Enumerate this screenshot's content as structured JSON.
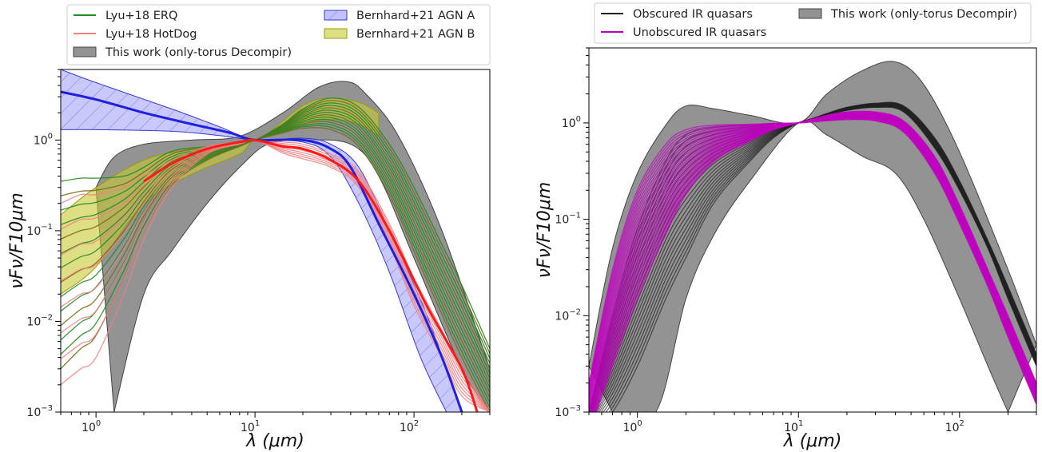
{
  "chart_data": [
    {
      "type": "line",
      "panel": "left",
      "xscale": "log",
      "yscale": "log",
      "xlim": [
        0.6,
        300
      ],
      "ylim": [
        0.001,
        6
      ],
      "xlabel": "λ (μm)",
      "ylabel": "νFν/F10μm",
      "grid": false,
      "legend_position": "top, above plot",
      "xticks": [
        {
          "value": 1,
          "label": "10",
          "exp": "0"
        },
        {
          "value": 10,
          "label": "10",
          "exp": "1"
        },
        {
          "value": 100,
          "label": "10",
          "exp": "2"
        }
      ],
      "yticks": [
        {
          "value": 0.001,
          "label": "10",
          "exp": "−3"
        },
        {
          "value": 0.01,
          "label": "10",
          "exp": "−2"
        },
        {
          "value": 0.1,
          "label": "10",
          "exp": "−1"
        },
        {
          "value": 1,
          "label": "10",
          "exp": "0"
        }
      ],
      "legend": [
        {
          "label": "Lyu+18 ERQ",
          "kind": "line",
          "color": "#228b22"
        },
        {
          "label": "Lyu+18 HotDog",
          "kind": "line",
          "color": "#f08080"
        },
        {
          "label": "This work (only-torus Decompir)",
          "kind": "band",
          "color": "#808080"
        },
        {
          "label": "Bernhard+21 AGN A",
          "kind": "hatch",
          "color": "#6b6bf0"
        },
        {
          "label": "Bernhard+21 AGN B",
          "kind": "band",
          "color": "#c8c832"
        }
      ],
      "bands": [
        {
          "name": "This work (only-torus Decompir)",
          "color": "#808080",
          "upper": [
            [
              1.0,
              0.3
            ],
            [
              1.3,
              0.65
            ],
            [
              2,
              0.9
            ],
            [
              4,
              1.0
            ],
            [
              8,
              1.1
            ],
            [
              15,
              2.0
            ],
            [
              25,
              3.8
            ],
            [
              38,
              4.4
            ],
            [
              50,
              3.2
            ],
            [
              80,
              1.1
            ],
            [
              150,
              0.1
            ],
            [
              300,
              0.003
            ]
          ],
          "lower": [
            [
              1.3,
              0.001
            ],
            [
              2,
              0.02
            ],
            [
              3,
              0.06
            ],
            [
              5,
              0.2
            ],
            [
              8,
              0.5
            ],
            [
              12,
              0.9
            ],
            [
              20,
              1.0
            ],
            [
              40,
              0.9
            ],
            [
              60,
              0.4
            ],
            [
              100,
              0.05
            ],
            [
              200,
              0.003
            ],
            [
              300,
              0.001
            ]
          ]
        },
        {
          "name": "Bernhard+21 AGN B",
          "color": "#c8c832",
          "upper": [
            [
              0.6,
              0.15
            ],
            [
              1,
              0.3
            ],
            [
              2,
              0.6
            ],
            [
              4,
              0.8
            ],
            [
              10,
              1.0
            ],
            [
              20,
              2.4
            ],
            [
              30,
              2.9
            ],
            [
              45,
              2.6
            ],
            [
              60,
              2.0
            ]
          ],
          "lower": [
            [
              0.6,
              0.02
            ],
            [
              1,
              0.04
            ],
            [
              2,
              0.2
            ],
            [
              4,
              0.42
            ],
            [
              8,
              0.7
            ],
            [
              10,
              1.0
            ],
            [
              20,
              1.5
            ],
            [
              30,
              1.7
            ],
            [
              45,
              1.5
            ],
            [
              60,
              1.1
            ]
          ]
        },
        {
          "name": "Bernhard+21 AGN A",
          "color": "#6b6bf0",
          "upper": [
            [
              0.6,
              6
            ],
            [
              1,
              4.3
            ],
            [
              3,
              2.2
            ],
            [
              6,
              1.4
            ],
            [
              10,
              1.0
            ],
            [
              20,
              1.05
            ],
            [
              30,
              0.9
            ],
            [
              45,
              0.5
            ],
            [
              70,
              0.1
            ],
            [
              120,
              0.012
            ],
            [
              200,
              0.001
            ]
          ],
          "lower": [
            [
              0.6,
              1.3
            ],
            [
              1,
              1.3
            ],
            [
              3,
              1.25
            ],
            [
              6,
              1.12
            ],
            [
              10,
              1.0
            ],
            [
              20,
              0.95
            ],
            [
              30,
              0.65
            ],
            [
              45,
              0.2
            ],
            [
              70,
              0.035
            ],
            [
              110,
              0.004
            ],
            [
              160,
              0.001
            ]
          ]
        }
      ],
      "series": [
        {
          "name": "Bernhard+21 AGN A",
          "color": "#1f1fe0",
          "points": [
            [
              0.6,
              3.4
            ],
            [
              1,
              2.8
            ],
            [
              2,
              2.0
            ],
            [
              4,
              1.5
            ],
            [
              7,
              1.2
            ],
            [
              10,
              1.0
            ],
            [
              20,
              1.0
            ],
            [
              30,
              0.8
            ],
            [
              40,
              0.5
            ],
            [
              60,
              0.12
            ],
            [
              100,
              0.02
            ],
            [
              150,
              0.004
            ],
            [
              200,
              0.001
            ]
          ]
        },
        {
          "name": "Lyu+18 HotDog (mean)",
          "color": "#ff1a1a",
          "points": [
            [
              2,
              0.35
            ],
            [
              3,
              0.55
            ],
            [
              5,
              0.8
            ],
            [
              8,
              0.95
            ],
            [
              10,
              1.0
            ],
            [
              15,
              0.85
            ],
            [
              20,
              0.8
            ],
            [
              30,
              0.6
            ],
            [
              45,
              0.35
            ],
            [
              70,
              0.1
            ],
            [
              120,
              0.015
            ],
            [
              200,
              0.003
            ],
            [
              250,
              0.001
            ]
          ]
        }
      ],
      "families": [
        {
          "name": "Lyu+18 ERQ",
          "color": "#228b22",
          "count": 14,
          "x": [
            0.6,
            0.8,
            1,
            1.5,
            2,
            3,
            5,
            8,
            10,
            15,
            20,
            30,
            45,
            70,
            100,
            150,
            200,
            300
          ],
          "first": [
            0.35,
            0.38,
            0.38,
            0.4,
            0.5,
            0.75,
            0.85,
            0.95,
            1.0,
            1.5,
            2.2,
            2.9,
            2.3,
            0.9,
            0.3,
            0.07,
            0.025,
            0.005
          ],
          "last": [
            0.003,
            0.005,
            0.007,
            0.03,
            0.1,
            0.32,
            0.6,
            0.85,
            1.0,
            1.2,
            1.35,
            1.3,
            0.85,
            0.25,
            0.06,
            0.012,
            0.004,
            0.001
          ]
        },
        {
          "name": "Lyu+18 HotDog",
          "color": "#f08080",
          "count": 8,
          "x": [
            0.6,
            0.8,
            1,
            1.5,
            2,
            3,
            5,
            8,
            10,
            15,
            20,
            30,
            45,
            70,
            100,
            150,
            200,
            300
          ],
          "first": [
            0.2,
            0.25,
            0.25,
            0.3,
            0.4,
            0.6,
            0.85,
            0.95,
            1.0,
            0.95,
            0.9,
            0.7,
            0.45,
            0.12,
            0.03,
            0.008,
            0.003,
            0.001
          ],
          "last": [
            0.002,
            0.003,
            0.004,
            0.02,
            0.08,
            0.3,
            0.7,
            0.9,
            1.0,
            0.72,
            0.62,
            0.5,
            0.3,
            0.07,
            0.015,
            0.004,
            0.0015,
            0.001
          ]
        }
      ]
    },
    {
      "type": "line",
      "panel": "right",
      "xscale": "log",
      "yscale": "log",
      "xlim": [
        0.5,
        300
      ],
      "ylim": [
        0.001,
        6
      ],
      "xlabel": "λ (μm)",
      "ylabel": "νFν/F10μm",
      "grid": false,
      "legend_position": "top, above plot",
      "xticks": [
        {
          "value": 1,
          "label": "10",
          "exp": "0"
        },
        {
          "value": 10,
          "label": "10",
          "exp": "1"
        },
        {
          "value": 100,
          "label": "10",
          "exp": "2"
        }
      ],
      "yticks": [
        {
          "value": 0.001,
          "label": "10",
          "exp": "−3"
        },
        {
          "value": 0.01,
          "label": "10",
          "exp": "−2"
        },
        {
          "value": 0.1,
          "label": "10",
          "exp": "−1"
        },
        {
          "value": 1,
          "label": "10",
          "exp": "0"
        }
      ],
      "legend": [
        {
          "label": "Obscured IR quasars",
          "kind": "line",
          "color": "#222222"
        },
        {
          "label": "Unobscured IR quasars",
          "kind": "line",
          "color": "#c000c0"
        },
        {
          "label": "This work (only-torus Decompir)",
          "kind": "band",
          "color": "#808080"
        }
      ],
      "bands": [
        {
          "name": "This work (only-torus Decompir)",
          "color": "#808080",
          "upper": [
            [
              0.5,
              0.003
            ],
            [
              0.7,
              0.05
            ],
            [
              1,
              0.3
            ],
            [
              1.5,
              0.95
            ],
            [
              2,
              1.5
            ],
            [
              3,
              1.4
            ],
            [
              5,
              1.2
            ],
            [
              10,
              1.0
            ],
            [
              15,
              2.0
            ],
            [
              25,
              3.5
            ],
            [
              40,
              4.3
            ],
            [
              60,
              2.5
            ],
            [
              100,
              0.5
            ],
            [
              200,
              0.03
            ],
            [
              300,
              0.005
            ]
          ],
          "lower": [
            [
              0.7,
              0.001
            ],
            [
              1.3,
              0.001
            ],
            [
              2,
              0.015
            ],
            [
              3,
              0.07
            ],
            [
              5,
              0.25
            ],
            [
              10,
              1.0
            ],
            [
              15,
              0.75
            ],
            [
              25,
              0.45
            ],
            [
              40,
              0.3
            ],
            [
              60,
              0.1
            ],
            [
              100,
              0.015
            ],
            [
              150,
              0.003
            ],
            [
              200,
              0.001
            ]
          ]
        }
      ],
      "families": [
        {
          "name": "Obscured IR quasars",
          "color": "#222222",
          "count": 22,
          "x": [
            0.5,
            0.7,
            1,
            1.5,
            2,
            3,
            5,
            7,
            10,
            15,
            20,
            30,
            45,
            70,
            100,
            150,
            200,
            300
          ],
          "first": [
            0.001,
            0.01,
            0.08,
            0.4,
            0.75,
            0.9,
            0.95,
            0.98,
            1.0,
            1.25,
            1.45,
            1.6,
            1.5,
            0.7,
            0.25,
            0.06,
            0.02,
            0.004
          ],
          "last": [
            0.0006,
            0.001,
            0.003,
            0.015,
            0.04,
            0.15,
            0.4,
            0.7,
            1.0,
            1.2,
            1.35,
            1.45,
            1.3,
            0.55,
            0.2,
            0.05,
            0.015,
            0.003
          ]
        },
        {
          "name": "Unobscured IR quasars",
          "color": "#c000c0",
          "count": 30,
          "x": [
            0.5,
            0.7,
            1,
            1.5,
            2,
            3,
            5,
            7,
            10,
            15,
            20,
            30,
            45,
            70,
            100,
            150,
            200,
            300
          ],
          "first": [
            0.002,
            0.03,
            0.2,
            0.6,
            0.85,
            0.95,
            0.97,
            0.99,
            1.0,
            1.05,
            1.08,
            1.05,
            0.8,
            0.3,
            0.09,
            0.02,
            0.006,
            0.0012
          ],
          "last": [
            0.0006,
            0.003,
            0.015,
            0.07,
            0.18,
            0.4,
            0.65,
            0.85,
            1.0,
            1.2,
            1.3,
            1.3,
            1.05,
            0.45,
            0.14,
            0.03,
            0.01,
            0.002
          ]
        }
      ]
    }
  ]
}
